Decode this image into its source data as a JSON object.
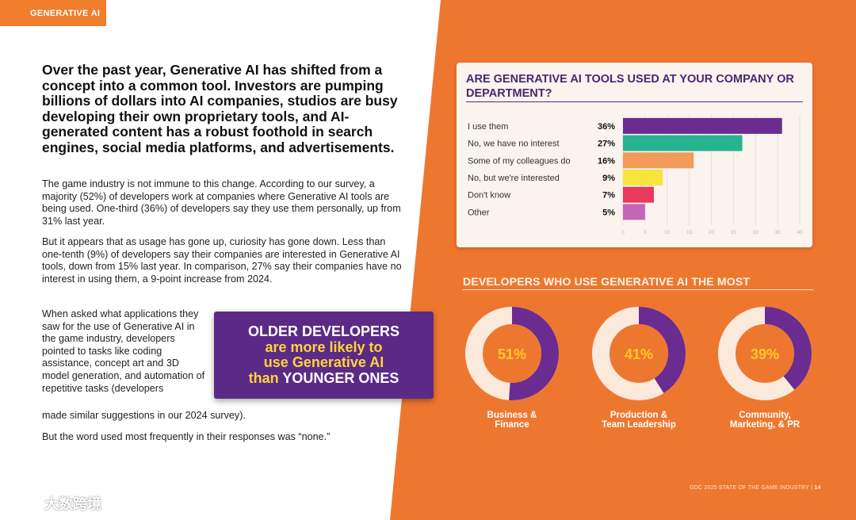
{
  "section_tag": "GENERATIVE AI",
  "lead": "Over the past year, Generative AI has shifted from a concept into a common tool. Investors are pumping billions of dollars into AI companies, studios are busy developing their own proprietary tools, and AI-generated content has a robust foothold in search engines, social media platforms, and advertisements.",
  "paragraphs": {
    "p1": "The game industry is not immune to this change. According to our survey, a majority (52%) of developers work at companies where Generative AI tools are being used. One-third (36%) of developers say they use them personally, up from 31% last year.",
    "p2": "But it appears that as usage has gone up, curiosity has gone down. Less than one-tenth (9%) of developers say their companies are interested in Generative AI tools, down from 15% last year. In comparison, 27% say their companies have no interest in using them, a 9-point increase from 2024.",
    "p3a": "When asked what applications they saw for the use of Generative AI in the game industry, developers pointed to tasks like coding assistance, concept art and 3D model generation, and automation of repetitive tasks (developers",
    "p3b": "made similar suggestions in our 2024 survey).",
    "p4": "But the word used most frequently in their responses was “none.”"
  },
  "callout": {
    "line1": "OLDER DEVELOPERS",
    "line2": "are more likely to",
    "line3": "use Generative AI",
    "line4_yellow": "than",
    "line4_white": "YOUNGER ONES"
  },
  "chart_data": [
    {
      "type": "bar",
      "orientation": "horizontal",
      "title": "ARE GENERATIVE AI TOOLS USED AT YOUR COMPANY OR DEPARTMENT?",
      "categories": [
        "I use them",
        "No, we have no interest",
        "Some of my colleagues do",
        "No, but we're interested",
        "Don't know",
        "Other"
      ],
      "values": [
        36,
        27,
        16,
        9,
        7,
        5
      ],
      "value_labels": [
        "36%",
        "27%",
        "16%",
        "9%",
        "7%",
        "5%"
      ],
      "colors": [
        "#6a2c91",
        "#26b38f",
        "#f29a59",
        "#f6e53c",
        "#e93a5e",
        "#c566b6"
      ],
      "xlim": [
        0,
        40
      ],
      "xticks": [
        "0",
        "5",
        "10",
        "15",
        "20",
        "25",
        "30",
        "35",
        "40"
      ]
    },
    {
      "type": "pie",
      "title": "DEVELOPERS WHO USE GENERATIVE AI THE MOST",
      "donuts": [
        {
          "label_line1": "Business &",
          "label_line2": "Finance",
          "value": 51,
          "display": "51%"
        },
        {
          "label_line1": "Production &",
          "label_line2": "Team Leadership",
          "value": 41,
          "display": "41%"
        },
        {
          "label_line1": "Community,",
          "label_line2": "Marketing, & PR",
          "value": 39,
          "display": "39%"
        }
      ],
      "fill_color": "#6a2c91",
      "track_color": "#fbe9dc",
      "value_text_color": "#ffc928"
    }
  ],
  "footer": {
    "report": "GDC 2025 STATE OF THE GAME INDUSTRY",
    "page": "14"
  },
  "watermark": "大数跨境",
  "colors": {
    "orange": "#ee7730",
    "purple": "#5b2a86",
    "yellow": "#ffd43b"
  }
}
